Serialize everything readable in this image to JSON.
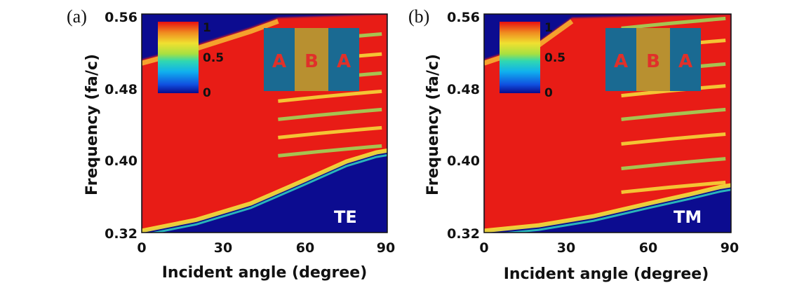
{
  "chart_data": [
    {
      "type": "heatmap",
      "panel_label": "(a)",
      "polarization": "TE",
      "xlabel": "Incident angle (degree)",
      "ylabel": "Frequency (fa/c)",
      "xlim": [
        0,
        90
      ],
      "ylim": [
        0.32,
        0.56
      ],
      "xticks": [
        "0",
        "30",
        "60",
        "90"
      ],
      "yticks": [
        "0.32",
        "0.40",
        "0.48",
        "0.56"
      ],
      "colorbar": {
        "ticks": [
          "1",
          "0.5",
          "0"
        ],
        "range": [
          0,
          1
        ]
      },
      "structure_inset": [
        "A",
        "B",
        "A"
      ],
      "lower_band_edge": [
        [
          0,
          0.322
        ],
        [
          20,
          0.334
        ],
        [
          40,
          0.352
        ],
        [
          60,
          0.378
        ],
        [
          75,
          0.398
        ],
        [
          86,
          0.408
        ],
        [
          90,
          0.41
        ]
      ],
      "upper_band_edge": [
        [
          0,
          0.51
        ],
        [
          20,
          0.526
        ],
        [
          40,
          0.545
        ],
        [
          50,
          0.556
        ]
      ],
      "fringe_frequencies": [
        0.535,
        0.513,
        0.492,
        0.472,
        0.452,
        0.432,
        0.412
      ]
    },
    {
      "type": "heatmap",
      "panel_label": "(b)",
      "polarization": "TM",
      "xlabel": "Incident angle (degree)",
      "ylabel": "Frequency (fa/c)",
      "xlim": [
        0,
        90
      ],
      "ylim": [
        0.32,
        0.56
      ],
      "xticks": [
        "0",
        "30",
        "60",
        "90"
      ],
      "yticks": [
        "0.32",
        "0.40",
        "0.48",
        "0.56"
      ],
      "colorbar": {
        "ticks": [
          "1",
          "0.5",
          "0"
        ],
        "range": [
          0,
          1
        ]
      },
      "structure_inset": [
        "A",
        "B",
        "A"
      ],
      "lower_band_edge": [
        [
          0,
          0.322
        ],
        [
          20,
          0.328
        ],
        [
          40,
          0.338
        ],
        [
          60,
          0.352
        ],
        [
          75,
          0.362
        ],
        [
          86,
          0.37
        ],
        [
          90,
          0.372
        ]
      ],
      "upper_band_edge": [
        [
          0,
          0.51
        ],
        [
          20,
          0.53
        ],
        [
          32,
          0.556
        ]
      ],
      "fringe_frequencies": [
        0.552,
        0.528,
        0.502,
        0.478,
        0.452,
        0.425,
        0.398,
        0.372
      ]
    }
  ]
}
